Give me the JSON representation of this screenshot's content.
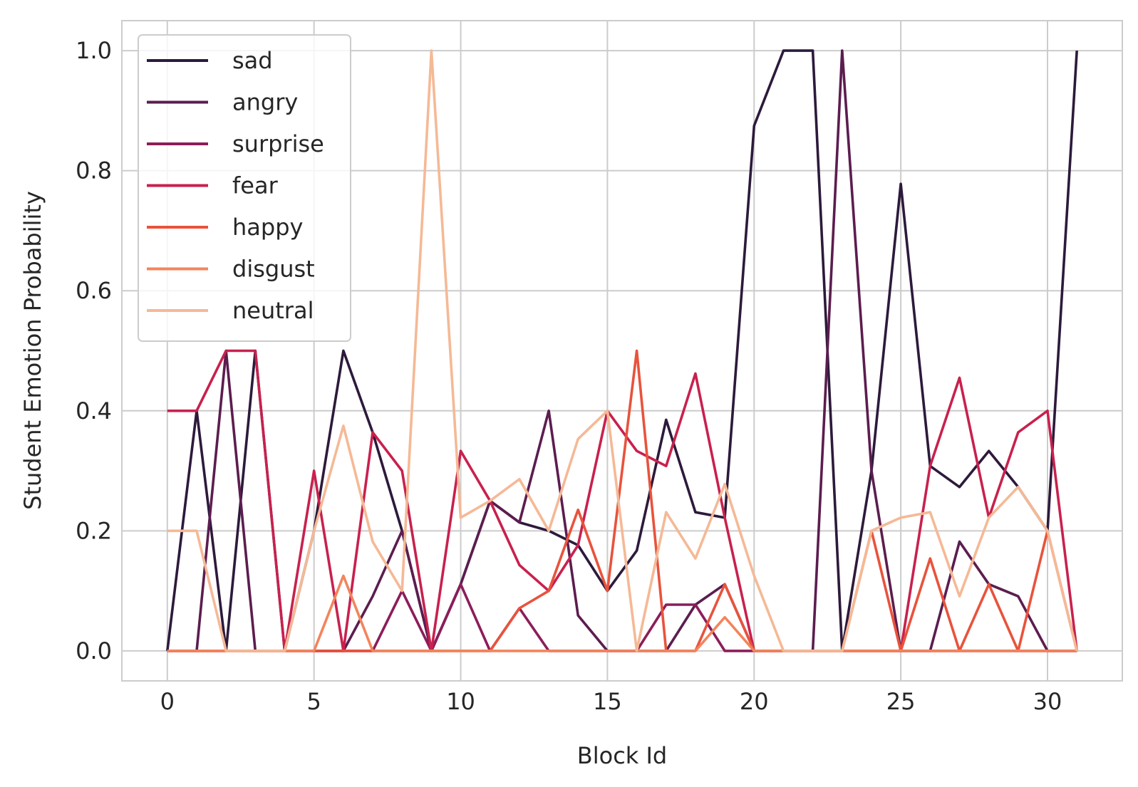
{
  "chart_data": {
    "type": "line",
    "xlabel": "Block Id",
    "ylabel": "Student Emotion Probability",
    "xlim": [
      -1.55,
      32.55
    ],
    "ylim": [
      -0.05,
      1.05
    ],
    "xticks": [
      0,
      5,
      10,
      15,
      20,
      25,
      30
    ],
    "yticks": [
      0.0,
      0.2,
      0.4,
      0.6,
      0.8,
      1.0
    ],
    "xtick_labels": [
      "0",
      "5",
      "10",
      "15",
      "20",
      "25",
      "30"
    ],
    "ytick_labels": [
      "0.0",
      "0.2",
      "0.4",
      "0.6",
      "0.8",
      "1.0"
    ],
    "grid": true,
    "legend_position": "top-left",
    "x": [
      0,
      1,
      2,
      3,
      4,
      5,
      6,
      7,
      8,
      9,
      10,
      11,
      12,
      13,
      14,
      15,
      16,
      17,
      18,
      19,
      20,
      21,
      22,
      23,
      24,
      25,
      26,
      27,
      28,
      29,
      30,
      31
    ],
    "series": [
      {
        "name": "sad",
        "color": "#2d1a3b",
        "values": [
          0,
          0.4,
          0,
          0.5,
          0,
          0.2,
          0.5,
          0.364,
          0.2,
          0,
          0.111,
          0.25,
          0.214,
          0.2,
          0.176,
          0.1,
          0.167,
          0.385,
          0.231,
          0.222,
          0.875,
          1.0,
          1.0,
          0,
          0.3,
          0.778,
          0.308,
          0.273,
          0.333,
          0.273,
          0.2,
          1.0
        ]
      },
      {
        "name": "angry",
        "color": "#5c1d4f",
        "values": [
          0,
          0,
          0.5,
          0,
          0,
          0,
          0,
          0.091,
          0.2,
          0,
          0.111,
          0.25,
          0.214,
          0.4,
          0.059,
          0,
          0,
          0,
          0.077,
          0.111,
          0,
          0,
          0,
          1.0,
          0.3,
          0,
          0,
          0.182,
          0.111,
          0.091,
          0,
          0
        ]
      },
      {
        "name": "surprise",
        "color": "#8c1d5a",
        "values": [
          0,
          0,
          0,
          0,
          0,
          0,
          0,
          0,
          0.1,
          0,
          0.111,
          0,
          0.071,
          0,
          0,
          0,
          0,
          0.077,
          0.077,
          0,
          0,
          0,
          0,
          0,
          0,
          0,
          0,
          0,
          0,
          0,
          0,
          0
        ]
      },
      {
        "name": "fear",
        "color": "#c8214e",
        "values": [
          0.4,
          0.4,
          0.5,
          0.5,
          0,
          0.3,
          0,
          0.364,
          0.3,
          0,
          0.333,
          0.25,
          0.143,
          0.1,
          0.176,
          0.4,
          0.333,
          0.308,
          0.462,
          0.222,
          0,
          0,
          0,
          0,
          0,
          0,
          0.308,
          0.455,
          0.222,
          0.364,
          0.4,
          0
        ]
      },
      {
        "name": "happy",
        "color": "#e8533c",
        "values": [
          0,
          0,
          0,
          0,
          0,
          0,
          0,
          0,
          0,
          0,
          0,
          0,
          0.071,
          0.1,
          0.235,
          0.1,
          0.5,
          0,
          0,
          0.111,
          0,
          0,
          0,
          0,
          0.2,
          0,
          0.154,
          0,
          0.111,
          0,
          0.2,
          0
        ]
      },
      {
        "name": "disgust",
        "color": "#f3845c",
        "values": [
          0,
          0,
          0,
          0,
          0,
          0,
          0.125,
          0,
          0,
          0,
          0,
          0,
          0,
          0,
          0,
          0,
          0,
          0,
          0,
          0.056,
          0,
          0,
          0,
          0,
          0,
          0,
          0,
          0,
          0,
          0,
          0,
          0
        ]
      },
      {
        "name": "neutral",
        "color": "#f5b996",
        "values": [
          0.2,
          0.2,
          0,
          0,
          0,
          0.2,
          0.375,
          0.182,
          0.1,
          1.0,
          0.222,
          0.25,
          0.286,
          0.2,
          0.353,
          0.4,
          0,
          0.231,
          0.154,
          0.278,
          0.125,
          0,
          0,
          0,
          0.2,
          0.222,
          0.231,
          0.091,
          0.222,
          0.273,
          0.2,
          0
        ]
      }
    ]
  }
}
